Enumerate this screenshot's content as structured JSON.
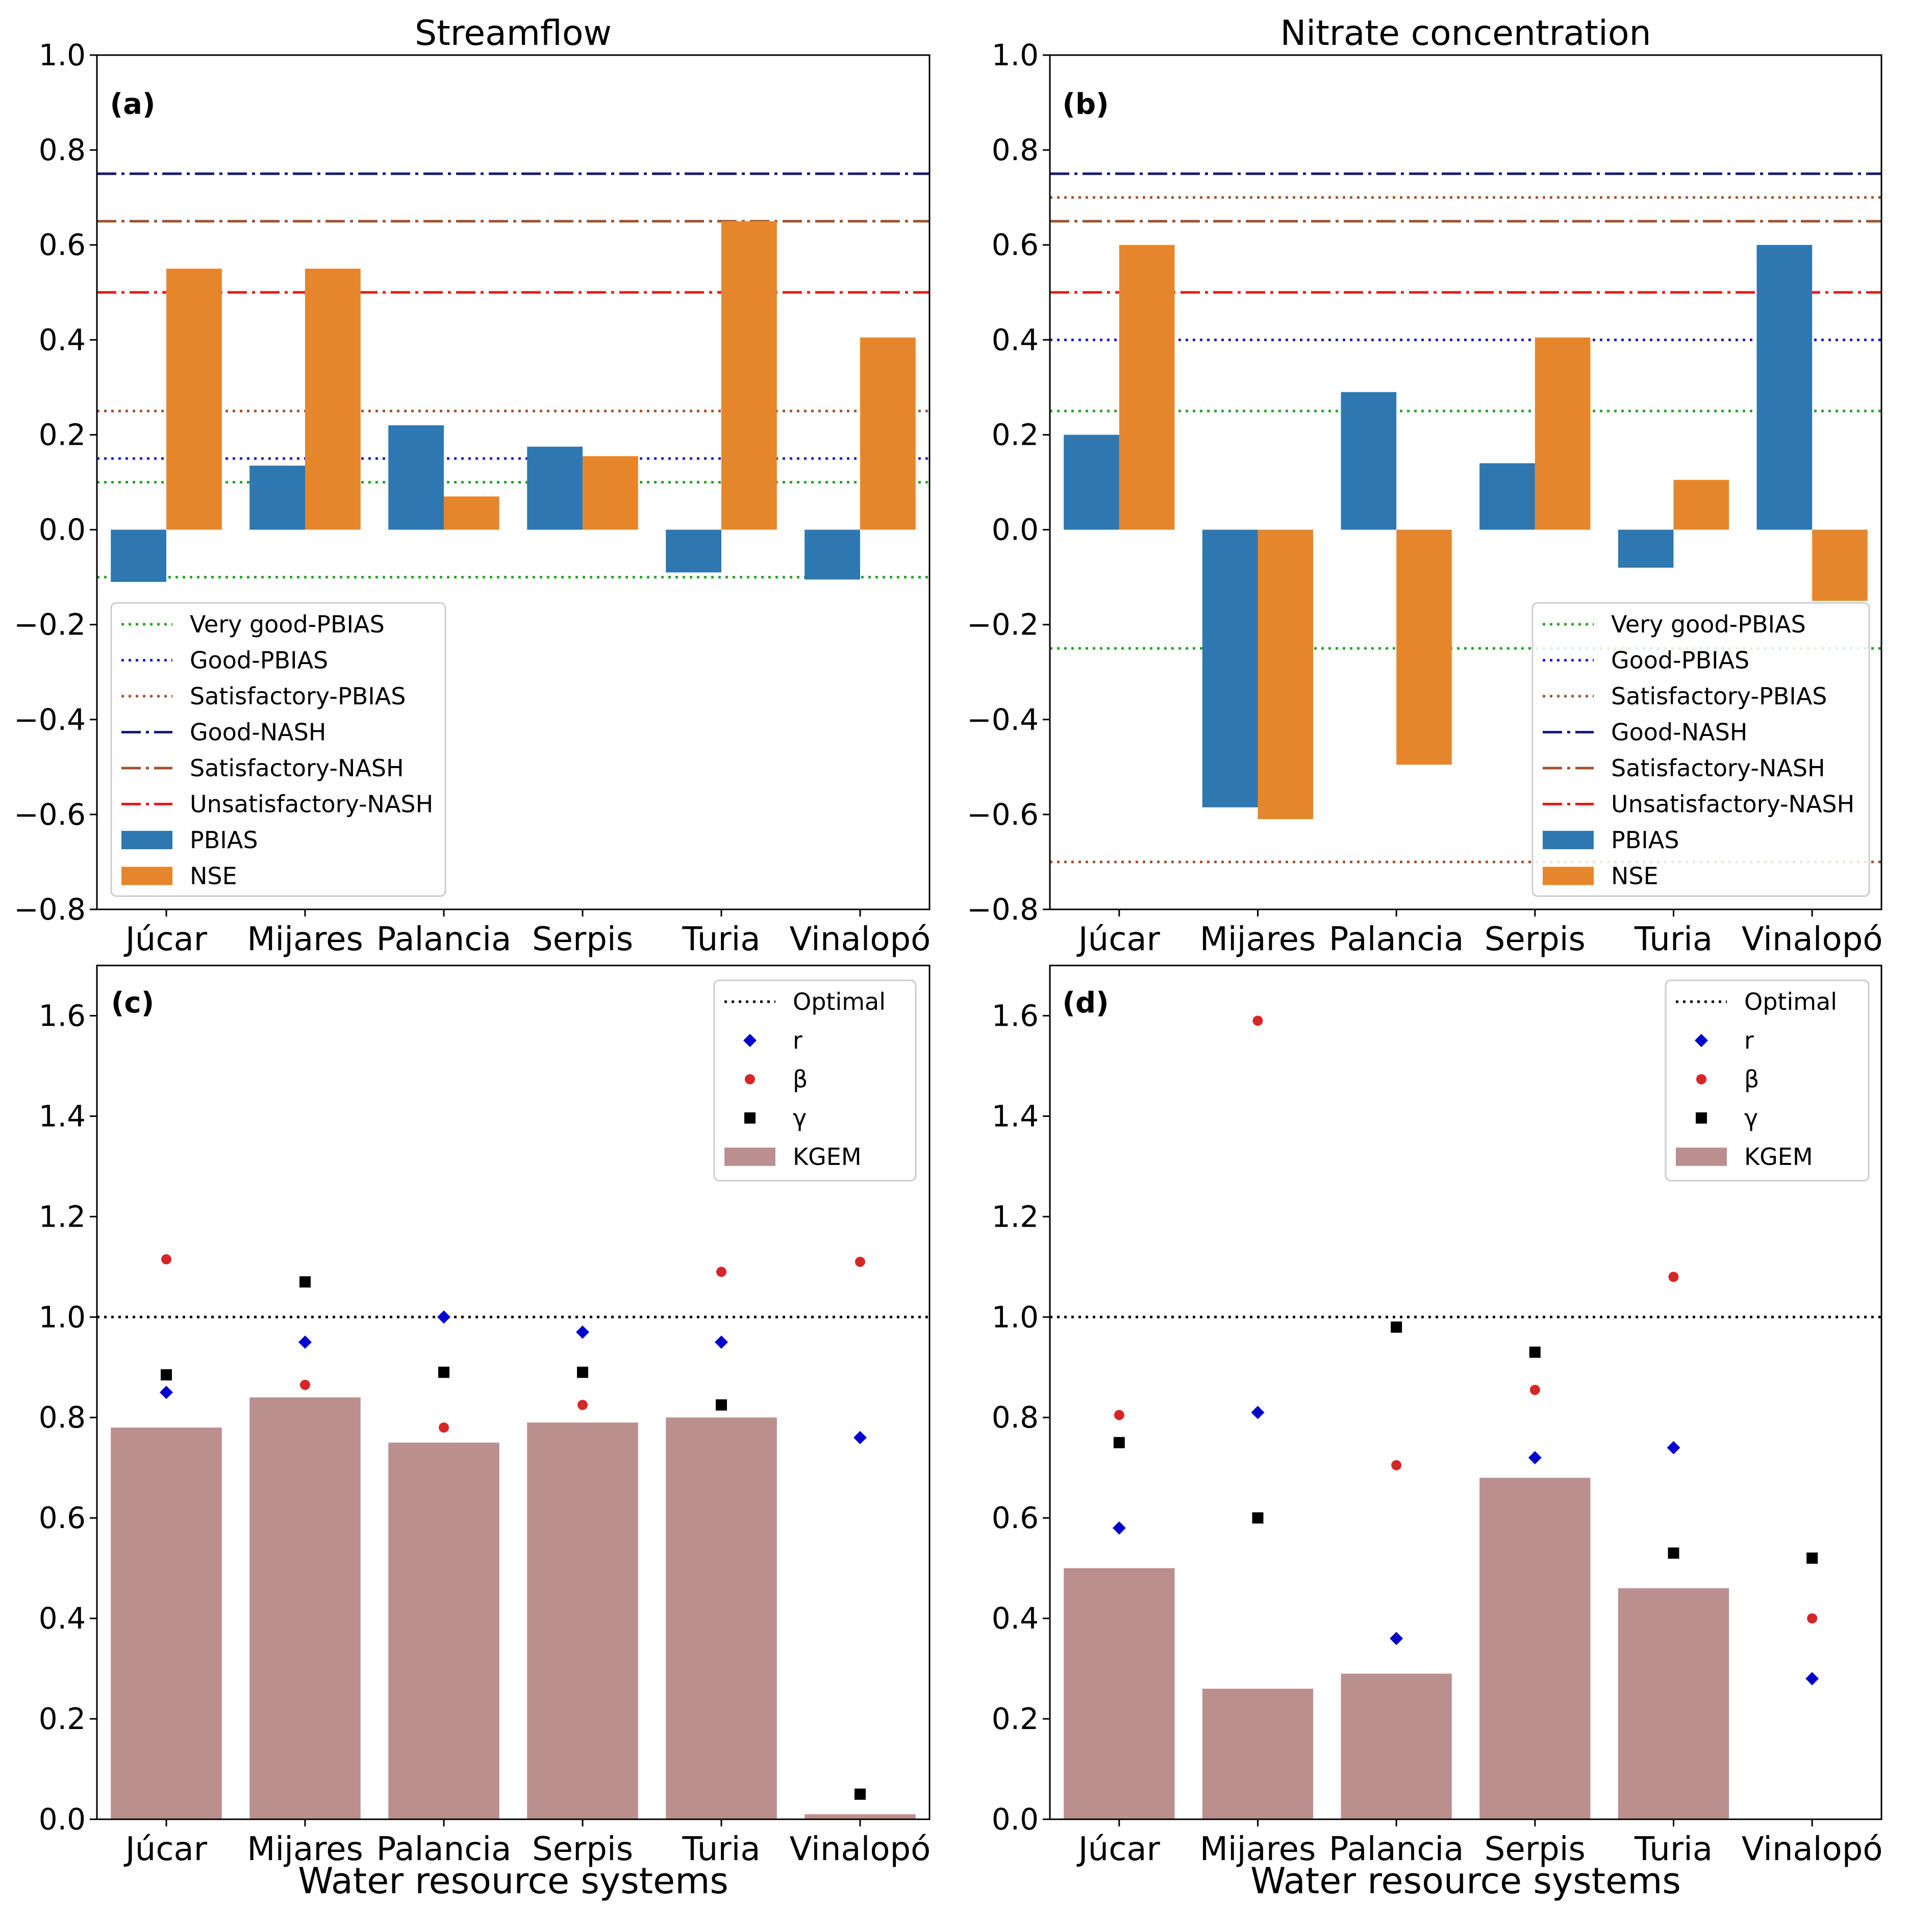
{
  "figure": {
    "column_titles": [
      "Streamflow",
      "Nitrate concentration"
    ],
    "shared_xlabel": "Water resource systems"
  },
  "chart_data": [
    {
      "panel": "(a)",
      "type": "bar",
      "title": "Streamflow",
      "categories": [
        "Júcar",
        "Mijares",
        "Palancia",
        "Serpis",
        "Turia",
        "Vinalopó"
      ],
      "series": [
        {
          "name": "PBIAS",
          "color": "#2f77b0",
          "values": [
            -0.11,
            0.135,
            0.22,
            0.175,
            -0.09,
            -0.105
          ]
        },
        {
          "name": "NSE",
          "color": "#e6862c",
          "values": [
            0.55,
            0.55,
            0.07,
            0.155,
            0.65,
            0.405
          ]
        }
      ],
      "reference_lines": [
        {
          "name": "Very good-PBIAS",
          "style": "dotted",
          "color": "#2ca02c",
          "values": [
            0.1,
            -0.1
          ]
        },
        {
          "name": "Good-PBIAS",
          "style": "dotted",
          "color": "#1f1fbf",
          "values": [
            0.15
          ]
        },
        {
          "name": "Satisfactory-PBIAS",
          "style": "dotted",
          "color": "#a0522d",
          "values": [
            0.25
          ]
        },
        {
          "name": "Good-NASH",
          "style": "dashdot",
          "color": "#1a1a7a",
          "values": [
            0.75
          ]
        },
        {
          "name": "Satisfactory-NASH",
          "style": "dashdot",
          "color": "#a0522d",
          "values": [
            0.65
          ]
        },
        {
          "name": "Unsatisfactory-NASH",
          "style": "dashdot",
          "color": "#e41a1c",
          "values": [
            0.5
          ]
        }
      ],
      "yticks": [
        "1.0",
        "0.8",
        "0.6",
        "0.4",
        "0.2",
        "0.0",
        "−0.2",
        "−0.4",
        "−0.6",
        "−0.8"
      ],
      "ylim": [
        -0.8,
        1.0
      ],
      "xlabel": "",
      "legend": "lower-left"
    },
    {
      "panel": "(b)",
      "type": "bar",
      "title": "Nitrate concentration",
      "categories": [
        "Júcar",
        "Mijares",
        "Palancia",
        "Serpis",
        "Turia",
        "Vinalopó"
      ],
      "series": [
        {
          "name": "PBIAS",
          "color": "#2f77b0",
          "values": [
            0.2,
            -0.585,
            0.29,
            0.14,
            -0.08,
            0.6
          ]
        },
        {
          "name": "NSE",
          "color": "#e6862c",
          "values": [
            0.6,
            -0.61,
            -0.495,
            0.405,
            0.105,
            -0.15
          ]
        }
      ],
      "reference_lines": [
        {
          "name": "Very good-PBIAS",
          "style": "dotted",
          "color": "#2ca02c",
          "values": [
            0.25,
            -0.25
          ]
        },
        {
          "name": "Good-PBIAS",
          "style": "dotted",
          "color": "#1f1fbf",
          "values": [
            0.4
          ]
        },
        {
          "name": "Satisfactory-PBIAS",
          "style": "dotted",
          "color": "#a0522d",
          "values": [
            0.7,
            -0.7
          ]
        },
        {
          "name": "Good-NASH",
          "style": "dashdot",
          "color": "#1a1a7a",
          "values": [
            0.75
          ]
        },
        {
          "name": "Satisfactory-NASH",
          "style": "dashdot",
          "color": "#a0522d",
          "values": [
            0.65
          ]
        },
        {
          "name": "Unsatisfactory-NASH",
          "style": "dashdot",
          "color": "#e41a1c",
          "values": [
            0.5
          ]
        }
      ],
      "yticks": [
        "1.0",
        "0.8",
        "0.6",
        "0.4",
        "0.2",
        "0.0",
        "−0.2",
        "−0.4",
        "−0.6",
        "−0.8"
      ],
      "ylim": [
        -0.8,
        1.0
      ],
      "xlabel": "",
      "legend": "lower-right"
    },
    {
      "panel": "(c)",
      "type": "bar",
      "title": "",
      "categories": [
        "Júcar",
        "Mijares",
        "Palancia",
        "Serpis",
        "Turia",
        "Vinalopó"
      ],
      "series": [
        {
          "name": "KGEM",
          "kind": "bar",
          "color": "#bc8f8f",
          "values": [
            0.78,
            0.84,
            0.75,
            0.79,
            0.8,
            0.01
          ]
        },
        {
          "name": "r",
          "kind": "marker",
          "marker": "diamond",
          "color": "#0000cd",
          "values": [
            0.85,
            0.95,
            1.0,
            0.97,
            0.95,
            0.76
          ]
        },
        {
          "name": "β",
          "kind": "marker",
          "marker": "circle",
          "color": "#d62728",
          "values": [
            1.115,
            0.865,
            0.78,
            0.825,
            1.09,
            1.11
          ]
        },
        {
          "name": "γ",
          "kind": "marker",
          "marker": "square",
          "color": "#000000",
          "values": [
            0.885,
            1.07,
            0.89,
            0.89,
            0.825,
            0.05
          ]
        }
      ],
      "reference_lines": [
        {
          "name": "Optimal",
          "style": "dotted",
          "color": "#000000",
          "values": [
            1.0
          ]
        }
      ],
      "yticks": [
        "1.6",
        "1.4",
        "1.2",
        "1.0",
        "0.8",
        "0.6",
        "0.4",
        "0.2",
        "0.0"
      ],
      "ylim": [
        0.0,
        1.7
      ],
      "xlabel": "Water resource systems",
      "legend": "top-right"
    },
    {
      "panel": "(d)",
      "type": "bar",
      "title": "",
      "categories": [
        "Júcar",
        "Mijares",
        "Palancia",
        "Serpis",
        "Turia",
        "Vinalopó"
      ],
      "series": [
        {
          "name": "KGEM",
          "kind": "bar",
          "color": "#bc8f8f",
          "values": [
            0.5,
            0.26,
            0.29,
            0.68,
            0.46,
            0.0
          ]
        },
        {
          "name": "r",
          "kind": "marker",
          "marker": "diamond",
          "color": "#0000cd",
          "values": [
            0.58,
            0.81,
            0.36,
            0.72,
            0.74,
            0.28
          ]
        },
        {
          "name": "β",
          "kind": "marker",
          "marker": "circle",
          "color": "#d62728",
          "values": [
            0.805,
            1.59,
            0.705,
            0.855,
            1.08,
            0.4
          ]
        },
        {
          "name": "γ",
          "kind": "marker",
          "marker": "square",
          "color": "#000000",
          "values": [
            0.75,
            0.6,
            0.98,
            0.93,
            0.53,
            0.52
          ]
        }
      ],
      "reference_lines": [
        {
          "name": "Optimal",
          "style": "dotted",
          "color": "#000000",
          "values": [
            1.0
          ]
        }
      ],
      "yticks": [
        "1.6",
        "1.4",
        "1.2",
        "1.0",
        "0.8",
        "0.6",
        "0.4",
        "0.2",
        "0.0"
      ],
      "ylim": [
        0.0,
        1.7
      ],
      "xlabel": "Water resource systems",
      "legend": "top-right"
    }
  ]
}
